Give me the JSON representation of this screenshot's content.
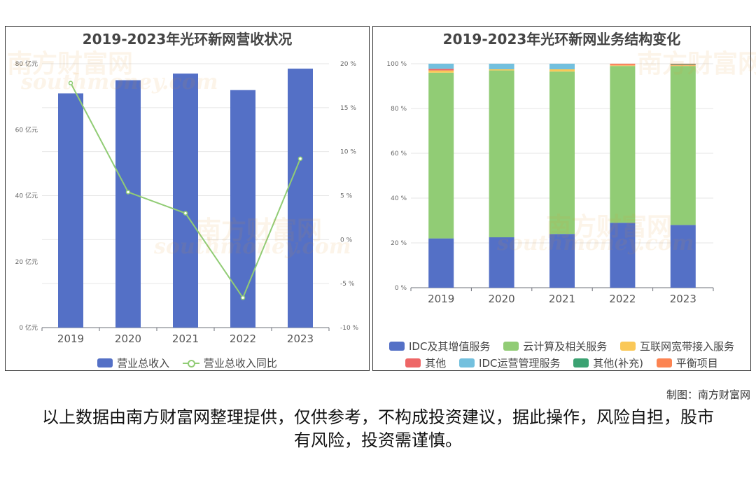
{
  "left": {
    "title": "2019-2023年光环新网营收状况",
    "legend": [
      {
        "label": "营业总收入",
        "color": "#5470c6",
        "type": "bar"
      },
      {
        "label": "营业总收入同比",
        "color": "#91cc75",
        "type": "line"
      }
    ]
  },
  "right": {
    "title": "2019-2023年光环新网业务结构变化",
    "legend": [
      {
        "label": "IDC及其增值服务",
        "color": "#5470c6"
      },
      {
        "label": "云计算及相关服务",
        "color": "#91cc75"
      },
      {
        "label": "互联网宽带接入服务",
        "color": "#fac858"
      },
      {
        "label": "其他",
        "color": "#ee6666"
      },
      {
        "label": "IDC运营管理服务",
        "color": "#73c0de"
      },
      {
        "label": "其他(补充)",
        "color": "#3ba272"
      },
      {
        "label": "平衡项目",
        "color": "#fc8452"
      }
    ]
  },
  "chart_data": [
    {
      "type": "bar",
      "title": "2019-2023年光环新网营收状况",
      "categories": [
        "2019",
        "2020",
        "2021",
        "2022",
        "2023"
      ],
      "series": [
        {
          "name": "营业总收入",
          "type": "bar",
          "axis": "left",
          "values": [
            71,
            75,
            77,
            72,
            78.5
          ]
        },
        {
          "name": "营业总收入同比",
          "type": "line",
          "axis": "right",
          "values": [
            17.8,
            5.4,
            3.0,
            -6.6,
            9.2
          ]
        }
      ],
      "y_left": {
        "min": 0,
        "max": 80,
        "ticks": [
          "0 亿元",
          "20 亿元",
          "40 亿元",
          "60 亿元",
          "80 亿元"
        ],
        "values": [
          0,
          20,
          40,
          60,
          80
        ]
      },
      "y_right": {
        "min": -10,
        "max": 20,
        "ticks": [
          "-10 %",
          "-5 %",
          "0 %",
          "5 %",
          "10 %",
          "15 %",
          "20 %"
        ],
        "values": [
          -10,
          -5,
          0,
          5,
          10,
          15,
          20
        ]
      },
      "grid": true,
      "legend_position": "bottom"
    },
    {
      "type": "bar",
      "stacked": true,
      "title": "2019-2023年光环新网业务结构变化",
      "categories": [
        "2019",
        "2020",
        "2021",
        "2022",
        "2023"
      ],
      "series": [
        {
          "name": "IDC及其增值服务",
          "values": [
            22,
            22.5,
            24,
            29,
            28
          ]
        },
        {
          "name": "云计算及相关服务",
          "values": [
            74,
            74.5,
            72.5,
            70,
            71
          ]
        },
        {
          "name": "互联网宽带接入服务",
          "values": [
            1,
            0.5,
            1,
            0.3,
            0.3
          ]
        },
        {
          "name": "其他",
          "values": [
            0.7,
            0,
            0,
            0.2,
            0.2
          ]
        },
        {
          "name": "IDC运营管理服务",
          "values": [
            2.3,
            2.5,
            2.5,
            0,
            0
          ]
        },
        {
          "name": "其他(补充)",
          "values": [
            0,
            0,
            0,
            0,
            0.3
          ]
        },
        {
          "name": "平衡项目",
          "values": [
            0,
            0,
            0,
            0.5,
            0.2
          ]
        }
      ],
      "y": {
        "min": 0,
        "max": 100,
        "ticks": [
          "0 %",
          "20 %",
          "40 %",
          "60 %",
          "80 %",
          "100 %"
        ],
        "values": [
          0,
          20,
          40,
          60,
          80,
          100
        ]
      },
      "grid": true,
      "legend_position": "bottom"
    }
  ],
  "credit": "制图：南方财富网",
  "disclaimer": "以上数据由南方财富网整理提供，仅供参考，不构成投资建议，据此操作，风险自担，股市有风险，投资需谨慎。",
  "watermark": {
    "cn": "南方财富网",
    "en": "southmoney.com"
  }
}
